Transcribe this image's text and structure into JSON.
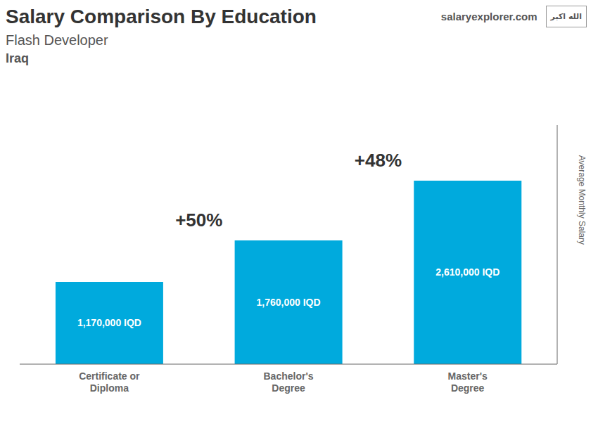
{
  "chart_data": {
    "type": "bar",
    "title": "Salary Comparison By Education",
    "subtitle": [
      "Flash Developer",
      "Iraq"
    ],
    "source": "salaryexplorer.com",
    "flag_text": "الله اكبر",
    "ylabel": "Average Monthly Salary",
    "categories": [
      "Certificate or\nDiploma",
      "Bachelor's\nDegree",
      "Master's\nDegree"
    ],
    "values": [
      1170000,
      1760000,
      2610000
    ],
    "value_labels": [
      "1,170,000 IQD",
      "1,760,000 IQD",
      "2,610,000 IQD"
    ],
    "data_labels": true,
    "annotations": [
      "+50%",
      "+48%"
    ],
    "color": "#00AADD",
    "ylim": [
      0,
      3400000
    ],
    "yticks": [],
    "tick_labels": "x",
    "grid": false
  }
}
